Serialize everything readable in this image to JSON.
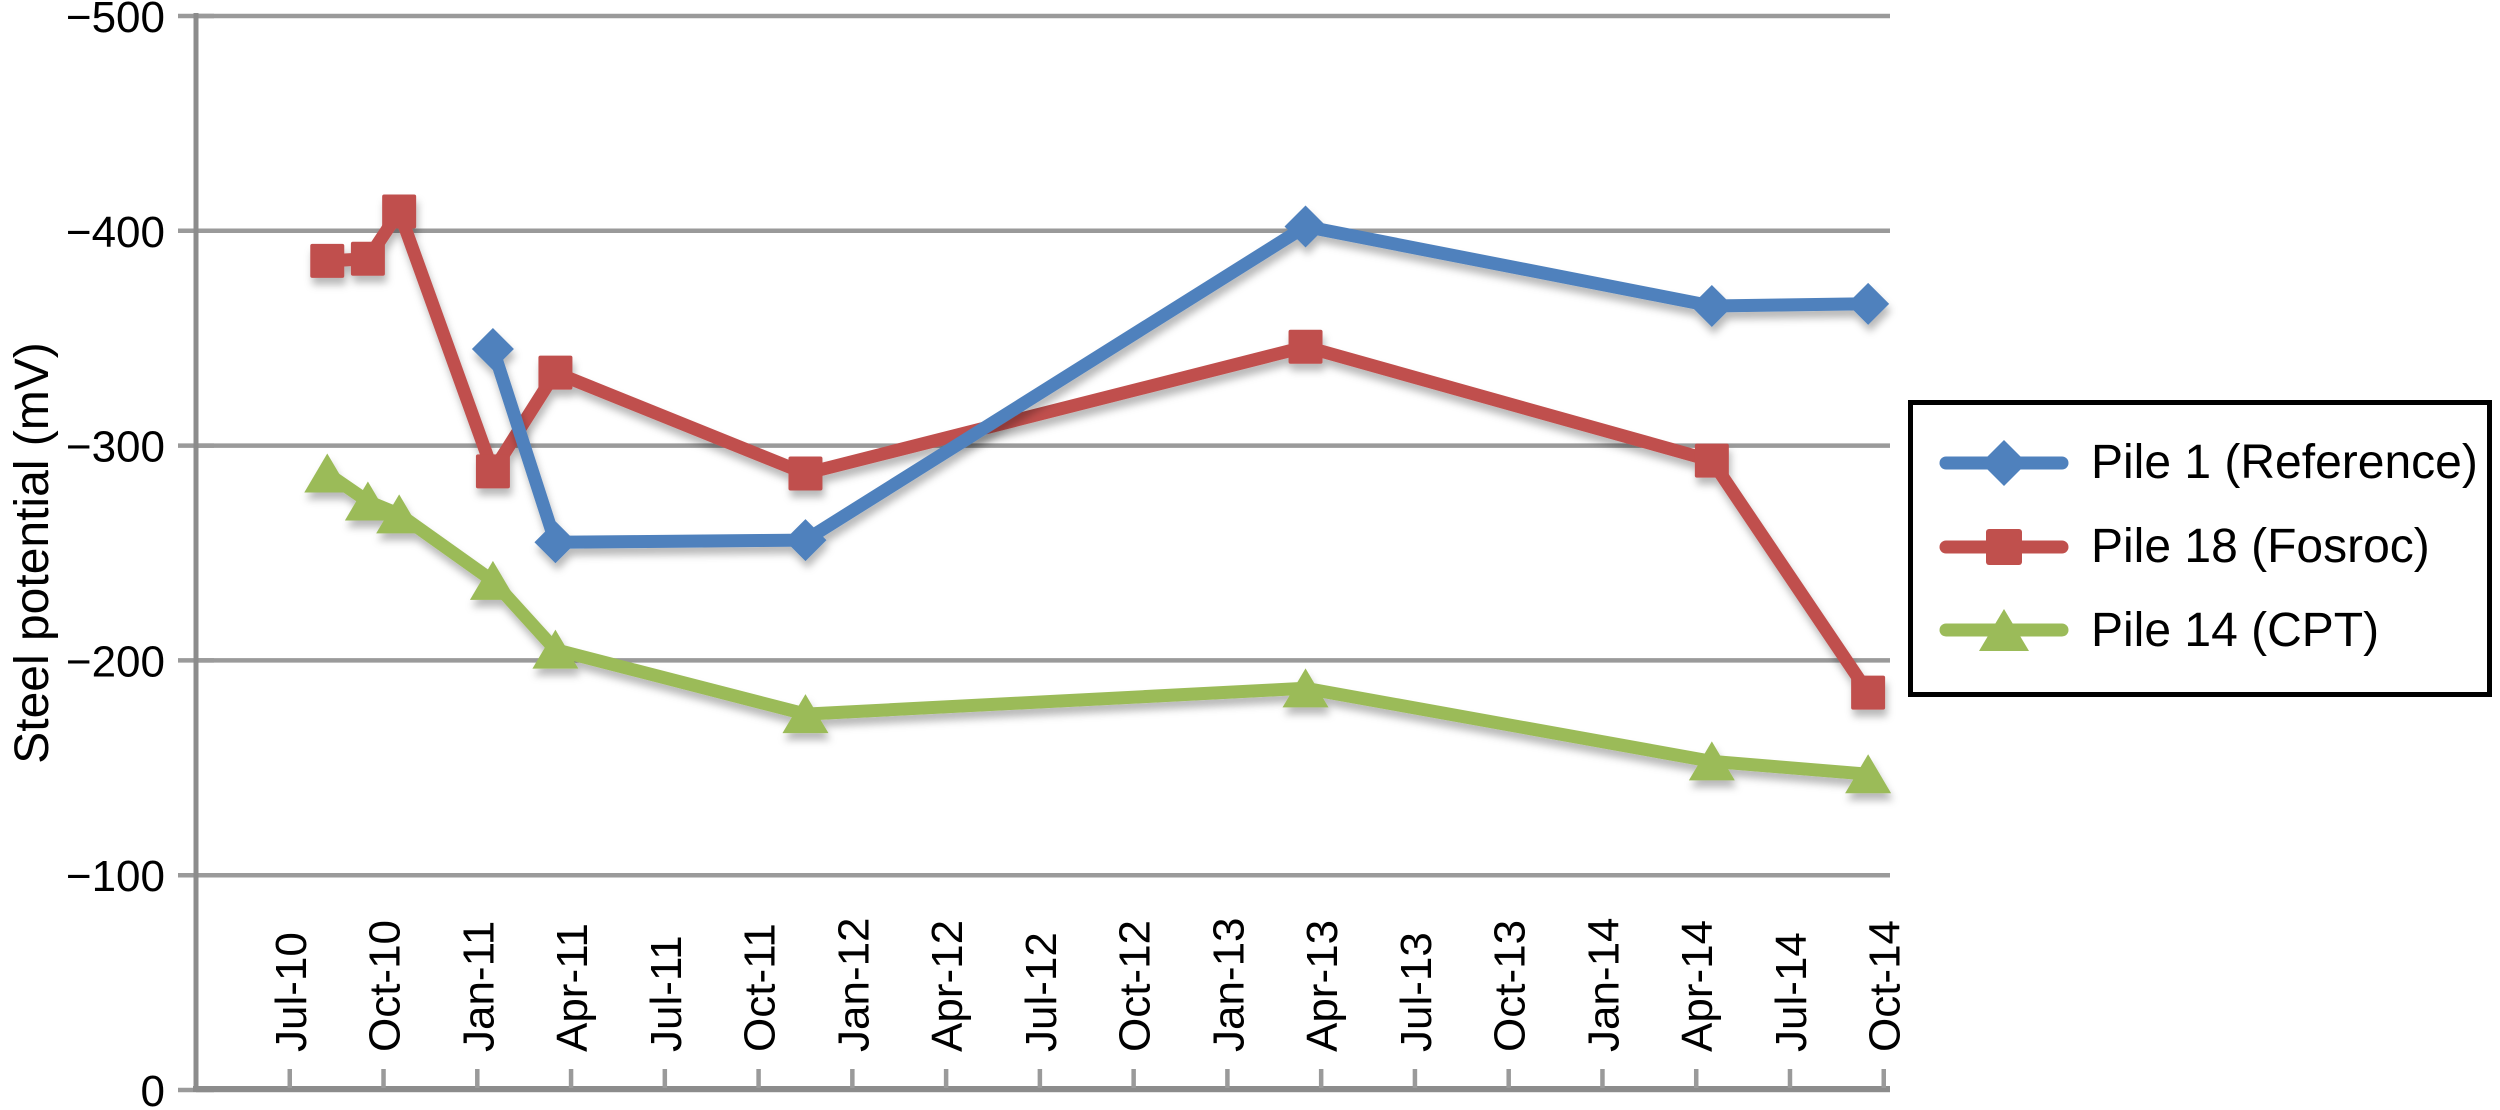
{
  "page": {
    "background": "#ffffff"
  },
  "chart_data": {
    "type": "line",
    "title": "",
    "xlabel": "",
    "ylabel": "Steel potential (mV)",
    "y_axis": {
      "inverted": true,
      "top_value": -500,
      "bottom_value": 0,
      "tick_step": 100,
      "ticks": [
        -500,
        -400,
        -300,
        -200,
        -100,
        0
      ],
      "tick_labels": [
        "−500",
        "−400",
        "−300",
        "−200",
        "−100",
        "0"
      ],
      "gridlines": true
    },
    "x_axis": {
      "tick_labels": [
        "Jul-10",
        "Oct-10",
        "Jan-11",
        "Apr-11",
        "Jul-11",
        "Oct-11",
        "Jan-12",
        "Apr-12",
        "Jul-12",
        "Oct-12",
        "Jan-13",
        "Apr-13",
        "Jul-13",
        "Oct-13",
        "Jan-14",
        "Apr-14",
        "Jul-14",
        "Oct-14"
      ],
      "tick_interval_months": 3,
      "domain_months": [
        -3,
        51.2
      ]
    },
    "series": [
      {
        "name": "Pile 1 (Reference)",
        "color": "#4f81bd",
        "marker": "diamond",
        "points": [
          {
            "m": 6.5,
            "date": "Jan-11",
            "mv": -345
          },
          {
            "m": 8.5,
            "date": "Mar-11",
            "mv": -255
          },
          {
            "m": 16.5,
            "date": "Nov-11",
            "mv": -256
          },
          {
            "m": 32.5,
            "date": "Mar-13",
            "mv": -402
          },
          {
            "m": 45.5,
            "date": "Apr-14",
            "mv": -365
          },
          {
            "m": 50.5,
            "date": "Sep-14",
            "mv": -366
          }
        ]
      },
      {
        "name": "Pile 18 (Fosroc)",
        "color": "#c0504d",
        "marker": "square",
        "points": [
          {
            "m": 1.2,
            "date": "Aug-10",
            "mv": -386
          },
          {
            "m": 2.5,
            "date": "Sep-10",
            "mv": -387
          },
          {
            "m": 3.5,
            "date": "Oct-10",
            "mv": -409
          },
          {
            "m": 6.5,
            "date": "Jan-11",
            "mv": -288
          },
          {
            "m": 8.5,
            "date": "Mar-11",
            "mv": -334
          },
          {
            "m": 16.5,
            "date": "Nov-11",
            "mv": -287
          },
          {
            "m": 32.5,
            "date": "Mar-13",
            "mv": -346
          },
          {
            "m": 45.5,
            "date": "Apr-14",
            "mv": -293
          },
          {
            "m": 50.5,
            "date": "Sep-14",
            "mv": -185
          }
        ]
      },
      {
        "name": "Pile 14 (CPT)",
        "color": "#9bbb59",
        "marker": "triangle",
        "points": [
          {
            "m": 1.2,
            "date": "Aug-10",
            "mv": -287
          },
          {
            "m": 2.5,
            "date": "Sep-10",
            "mv": -274
          },
          {
            "m": 3.5,
            "date": "Oct-10",
            "mv": -268
          },
          {
            "m": 6.5,
            "date": "Jan-11",
            "mv": -237
          },
          {
            "m": 8.5,
            "date": "Mar-11",
            "mv": -205
          },
          {
            "m": 16.5,
            "date": "Nov-11",
            "mv": -175
          },
          {
            "m": 32.5,
            "date": "Mar-13",
            "mv": -187
          },
          {
            "m": 45.5,
            "date": "Apr-14",
            "mv": -153
          },
          {
            "m": 50.5,
            "date": "Sep-14",
            "mv": -147
          }
        ]
      }
    ],
    "legend": {
      "position": "right",
      "entries": [
        "Pile 1 (Reference)",
        "Pile 18 (Fosroc)",
        "Pile 14 (CPT)"
      ]
    }
  },
  "colors": {
    "grid": "#9a9a9a",
    "axis": "#8c8c8c",
    "tick": "#9a9a9a",
    "text": "#000000",
    "legend_border": "#000000",
    "series_blue": "#4f81bd",
    "series_red": "#c0504d",
    "series_green": "#9bbb59"
  }
}
